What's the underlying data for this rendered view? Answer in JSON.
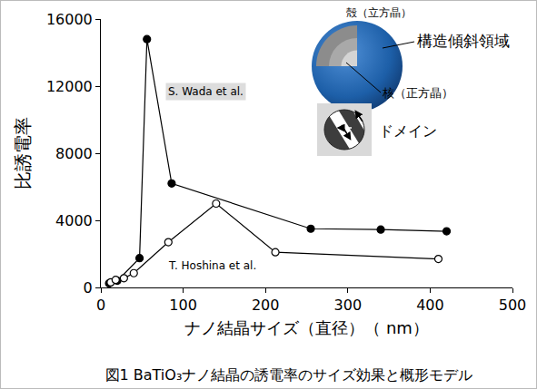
{
  "chart_data": {
    "type": "line",
    "title": "図1 BaTiO₃ナノ結晶の誘電率のサイズ効果と概形モデル",
    "x_label": "ナノ結晶サイズ（直径）（ nm）",
    "y_label": "比誘電率",
    "series": [
      {
        "name": "S. Wada et al.",
        "color": "#000000",
        "marker": "filled_circle",
        "x": [
          10,
          20,
          47,
          56,
          86,
          255,
          340,
          420
        ],
        "values": [
          250,
          400,
          1750,
          14800,
          6200,
          3500,
          3450,
          3350
        ]
      },
      {
        "name": "T. Hoshina et al.",
        "color": "#000000",
        "marker": "open_circle",
        "x": [
          12,
          18,
          28,
          40,
          82,
          140,
          212,
          410
        ],
        "values": [
          300,
          450,
          550,
          850,
          2700,
          5000,
          2100,
          1700
        ]
      }
    ],
    "xlim": [
      0,
      500
    ],
    "xticks": [
      0,
      100,
      200,
      300,
      400,
      500
    ],
    "ylim": [
      0,
      16000
    ],
    "yticks": [
      0,
      4000,
      8000,
      12000,
      16000
    ],
    "grid": false
  },
  "inset": {
    "shell": "殻（立方晶）",
    "region": "構造傾斜領域",
    "core": "核（正方晶）",
    "domain": "ドメイン"
  }
}
